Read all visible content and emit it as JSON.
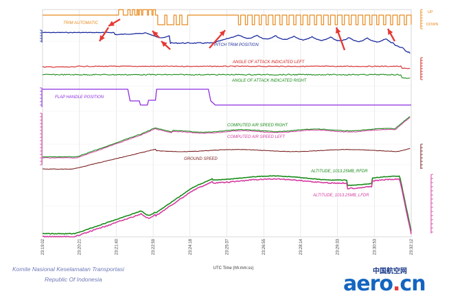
{
  "chart_data": {
    "type": "line",
    "xlabel": "UTC Time (hh:mm:ss)",
    "x_ticks": [
      "23:19:02",
      "23:20:21",
      "23:21:40",
      "23:22:59",
      "23:24:18",
      "23:25:37",
      "23:26:55",
      "23:28:14",
      "23:29:33",
      "23:30:53",
      "23:32:12"
    ],
    "trim_labels": {
      "up": "UP",
      "down": "DOWN"
    },
    "series": [
      {
        "name": "TRIM AUTOMATIC",
        "color": "#e8891c",
        "x": [
          0,
          3.3,
          3.5,
          3.7,
          3.8,
          3.9,
          4.0,
          4.1,
          4.15,
          4.2,
          4.3,
          4.35,
          4.55,
          4.6,
          4.75,
          4.8,
          4.9,
          5.0,
          5.3,
          5.4,
          5.7,
          5.8,
          5.95,
          6.05,
          6.3,
          6.4,
          8.5,
          8.6,
          8.8,
          8.9,
          9.1,
          9.2,
          9.4,
          9.5,
          9.7,
          9.8,
          10.0,
          10.1,
          10.3,
          10.4,
          10.6,
          10.7,
          10.9,
          11.0,
          11.2,
          11.3,
          11.5,
          11.6,
          11.8,
          11.9,
          12.1,
          12.2,
          12.4,
          12.5,
          12.7,
          12.8,
          13.0,
          13.1,
          13.3,
          13.4,
          13.6,
          13.7,
          13.9,
          14.0,
          14.2,
          14.3,
          14.5,
          14.6,
          14.8,
          14.9,
          15.1,
          15.2,
          15.4,
          15.5,
          15.7,
          15.8,
          16.0
        ],
        "state": [
          "neutral",
          "up",
          "neutral",
          "up",
          "neutral",
          "up",
          "neutral",
          "up",
          "neutral",
          "up",
          "neutral",
          "up",
          "neutral",
          "up",
          "neutral",
          "up",
          "neutral",
          "down",
          "neutral",
          "down",
          "neutral",
          "down",
          "neutral",
          "down",
          "neutral",
          "neutral",
          "down",
          "neutral",
          "down",
          "neutral",
          "down",
          "neutral",
          "down",
          "neutral",
          "down",
          "neutral",
          "down",
          "neutral",
          "down",
          "neutral",
          "down",
          "neutral",
          "down",
          "neutral",
          "down",
          "neutral",
          "down",
          "neutral",
          "down",
          "neutral",
          "down",
          "neutral",
          "down",
          "neutral",
          "down",
          "neutral",
          "down",
          "neutral",
          "down",
          "neutral",
          "down",
          "neutral",
          "down",
          "neutral",
          "down",
          "neutral",
          "down",
          "neutral",
          "down",
          "neutral",
          "down",
          "neutral",
          "down",
          "neutral",
          "down",
          "neutral",
          "down"
        ]
      },
      {
        "name": "PITCH TRIM POSITION",
        "color": "#1a2a9e"
      },
      {
        "name": "ANGLE OF ATTACK INDICATED LEFT",
        "color": "#d42020"
      },
      {
        "name": "ANGLE OF ATTACK INDICATED RIGHT",
        "color": "#178a17"
      },
      {
        "name": "FLAP HANDLE POSITION",
        "color": "#8a2be2"
      },
      {
        "name": "COMPUTED AIR SPEED RIGHT",
        "color": "#178a17"
      },
      {
        "name": "COMPUTED AIR SPEED LEFT",
        "color": "#d43aa0"
      },
      {
        "name": "GROUND SPEED",
        "color": "#7a2020"
      },
      {
        "name": "ALTITUDE_1013.25MB_RFDR",
        "color": "#178a17"
      },
      {
        "name": "ALTITUDE_1013.25MB_LFDR",
        "color": "#d43aa0"
      }
    ],
    "grid": true
  },
  "footer": {
    "line1": "Komite Nasional Keselamatan Transportasi",
    "line2": "Republic Of Indonesia"
  },
  "watermark": {
    "cn": "中国航空网",
    "logo_main": "aero",
    "logo_dot": ".",
    "logo_end": "cn"
  }
}
